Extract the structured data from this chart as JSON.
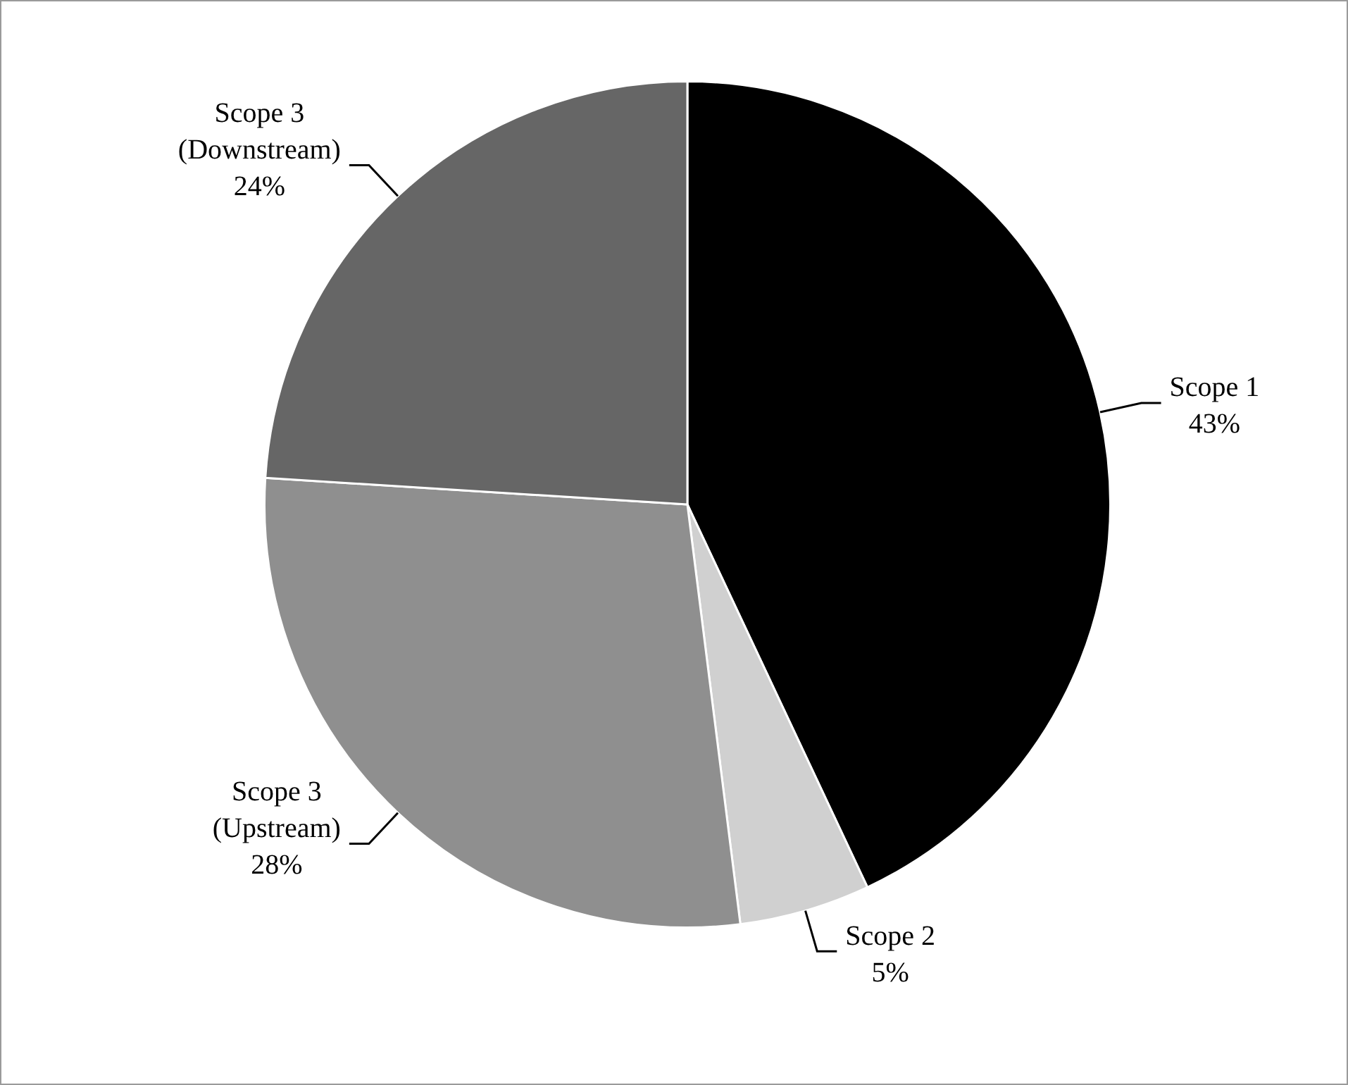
{
  "chart_data": {
    "type": "pie",
    "categories": [
      "Scope 1",
      "Scope 2",
      "Scope 3 (Upstream)",
      "Scope 3 (Downstream)"
    ],
    "values": [
      43,
      5,
      28,
      24
    ],
    "colors": [
      "#000000",
      "#d0d0d0",
      "#8f8f8f",
      "#666666"
    ],
    "value_labels": [
      "43%",
      "5%",
      "28%",
      "24%"
    ],
    "legend": false
  }
}
